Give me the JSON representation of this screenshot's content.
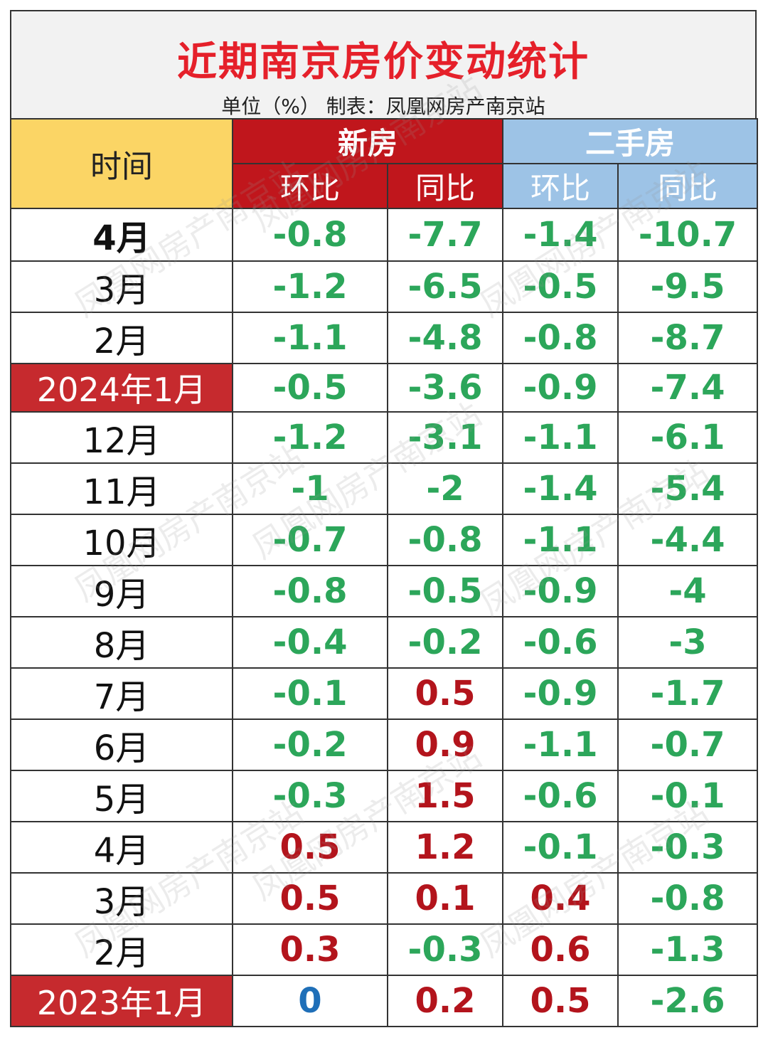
{
  "title": "近期南京房价变动统计",
  "subtitle": "单位（%） 制表：凤凰网房产南京站",
  "watermark": "凤凰网房产南京站",
  "headers": {
    "time": "时间",
    "new_house": "新房",
    "second_hand": "二手房",
    "mom": "环比",
    "yoy": "同比"
  },
  "colors": {
    "title": "#e5202a",
    "new_header": "#c0161c",
    "second_header": "#9dc3e6",
    "time_header": "#fbd565",
    "negative": "#2ca65a",
    "positive": "#b3141c",
    "zero": "#1f6fb8"
  },
  "rows": [
    {
      "month": "4月",
      "new_mom": "-0.8",
      "new_yoy": "-7.7",
      "sec_mom": "-1.4",
      "sec_yoy": "-10.7"
    },
    {
      "month": "3月",
      "new_mom": "-1.2",
      "new_yoy": "-6.5",
      "sec_mom": "-0.5",
      "sec_yoy": "-9.5"
    },
    {
      "month": "2月",
      "new_mom": "-1.1",
      "new_yoy": "-4.8",
      "sec_mom": "-0.8",
      "sec_yoy": "-8.7"
    },
    {
      "month": "2024年1月",
      "new_mom": "-0.5",
      "new_yoy": "-3.6",
      "sec_mom": "-0.9",
      "sec_yoy": "-7.4"
    },
    {
      "month": "12月",
      "new_mom": "-1.2",
      "new_yoy": "-3.1",
      "sec_mom": "-1.1",
      "sec_yoy": "-6.1"
    },
    {
      "month": "11月",
      "new_mom": "-1",
      "new_yoy": "-2",
      "sec_mom": "-1.4",
      "sec_yoy": "-5.4"
    },
    {
      "month": "10月",
      "new_mom": "-0.7",
      "new_yoy": "-0.8",
      "sec_mom": "-1.1",
      "sec_yoy": "-4.4"
    },
    {
      "month": "9月",
      "new_mom": "-0.8",
      "new_yoy": "-0.5",
      "sec_mom": "-0.9",
      "sec_yoy": "-4"
    },
    {
      "month": "8月",
      "new_mom": "-0.4",
      "new_yoy": "-0.2",
      "sec_mom": "-0.6",
      "sec_yoy": "-3"
    },
    {
      "month": "7月",
      "new_mom": "-0.1",
      "new_yoy": "0.5",
      "sec_mom": "-0.9",
      "sec_yoy": "-1.7"
    },
    {
      "month": "6月",
      "new_mom": "-0.2",
      "new_yoy": "0.9",
      "sec_mom": "-1.1",
      "sec_yoy": "-0.7"
    },
    {
      "month": "5月",
      "new_mom": "-0.3",
      "new_yoy": "1.5",
      "sec_mom": "-0.6",
      "sec_yoy": "-0.1"
    },
    {
      "month": "4月",
      "new_mom": "0.5",
      "new_yoy": "1.2",
      "sec_mom": "-0.1",
      "sec_yoy": "-0.3"
    },
    {
      "month": "3月",
      "new_mom": "0.5",
      "new_yoy": "0.1",
      "sec_mom": "0.4",
      "sec_yoy": "-0.8"
    },
    {
      "month": "2月",
      "new_mom": "0.3",
      "new_yoy": "-0.3",
      "sec_mom": "0.6",
      "sec_yoy": "-1.3"
    },
    {
      "month": "2023年1月",
      "new_mom": "0",
      "new_yoy": "0.2",
      "sec_mom": "0.5",
      "sec_yoy": "-2.6"
    }
  ]
}
